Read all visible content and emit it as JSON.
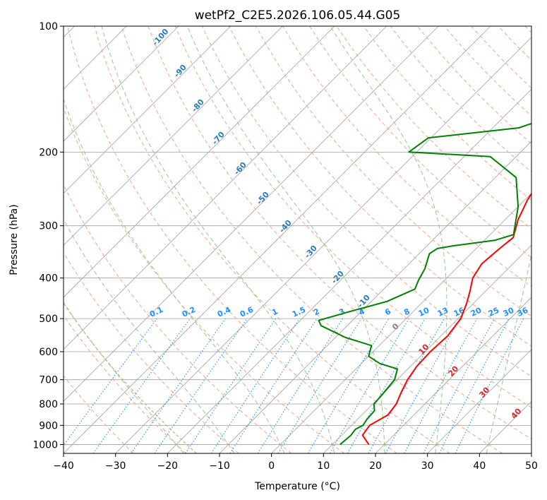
{
  "chart_data": {
    "type": "line",
    "title": "wetPf2_C2E5.2026.106.05.44.G05",
    "xlabel": "Temperature (°C)",
    "ylabel": "Pressure (hPa)",
    "xlim": [
      -40,
      50
    ],
    "ylim": [
      1050,
      100
    ],
    "y_scale": "log",
    "x_ticks": [
      -40,
      -30,
      -20,
      -10,
      0,
      10,
      20,
      30,
      40,
      50
    ],
    "y_ticks": [
      100,
      200,
      300,
      400,
      500,
      600,
      700,
      800,
      900,
      1000
    ],
    "grid": true,
    "series": [
      {
        "color": "#ff0000",
        "points": [
          [
            17,
            1000
          ],
          [
            14,
            950
          ],
          [
            13.5,
            900
          ],
          [
            15,
            850
          ],
          [
            14.5,
            800
          ],
          [
            13.2,
            750
          ],
          [
            12,
            700
          ],
          [
            11.2,
            650
          ],
          [
            11,
            600
          ],
          [
            11.3,
            550
          ],
          [
            10.5,
            500
          ],
          [
            8.7,
            460
          ],
          [
            7,
            430
          ],
          [
            5,
            400
          ],
          [
            4,
            370
          ],
          [
            4.5,
            340
          ],
          [
            5,
            320
          ],
          [
            2.5,
            290
          ],
          [
            0.5,
            260
          ],
          [
            -1,
            230
          ],
          [
            -1.5,
            210
          ],
          [
            0,
            195
          ],
          [
            2.5,
            180
          ],
          [
            6,
            160
          ],
          [
            8.5,
            140
          ],
          [
            10.5,
            125
          ],
          [
            13.5,
            110
          ],
          [
            16,
            100
          ]
        ]
      },
      {
        "color": "#008000",
        "points": [
          [
            11.5,
            1000
          ],
          [
            11.8,
            950
          ],
          [
            11.5,
            920
          ],
          [
            12.2,
            900
          ],
          [
            11.8,
            870
          ],
          [
            11.6,
            830
          ],
          [
            10.2,
            800
          ],
          [
            10,
            760
          ],
          [
            9.5,
            700
          ],
          [
            8,
            660
          ],
          [
            3.5,
            640
          ],
          [
            0,
            615
          ],
          [
            -1.5,
            580
          ],
          [
            -8,
            555
          ],
          [
            -15,
            520
          ],
          [
            -16.5,
            505
          ],
          [
            -12,
            480
          ],
          [
            -7,
            455
          ],
          [
            -4,
            425
          ],
          [
            -5,
            405
          ],
          [
            -6,
            380
          ],
          [
            -8,
            350
          ],
          [
            -7.5,
            340
          ],
          [
            -5,
            335
          ],
          [
            2,
            325
          ],
          [
            4.5,
            315
          ],
          [
            0,
            270
          ],
          [
            -6,
            230
          ],
          [
            -15,
            205
          ],
          [
            -31.5,
            200
          ],
          [
            -30.5,
            185
          ],
          [
            -15,
            175
          ],
          [
            -11,
            165
          ],
          [
            -10,
            155
          ],
          [
            -11,
            140
          ],
          [
            -6,
            125
          ],
          [
            -3,
            115
          ],
          [
            -1,
            100
          ]
        ]
      }
    ],
    "dry_adiabat_labels": [
      "-100",
      "-90",
      "-80",
      "-70",
      "-60",
      "-50",
      "-40",
      "-30",
      "-20",
      "-10"
    ],
    "mixing_ratio_labels": [
      "0.1",
      "0.2",
      "0.4",
      "0.6",
      "1",
      "1.5",
      "2",
      "3",
      "4",
      "6",
      "8",
      "10",
      "13",
      "16",
      "20",
      "25",
      "30",
      "36"
    ],
    "moist_adiabat_labels": [
      "0",
      "10",
      "20",
      "30",
      "40"
    ],
    "colors": {
      "temperature": "#ff0000",
      "dewpoint": "#008000",
      "isotherm": "#a0a0a0",
      "isobar": "#a0a0a0",
      "dry_adiabat": "#ffa07a",
      "moist_adiabat": "#90c890",
      "mixing_ratio": "#1e90ff",
      "parcel_trace": "#d2b48c"
    }
  }
}
